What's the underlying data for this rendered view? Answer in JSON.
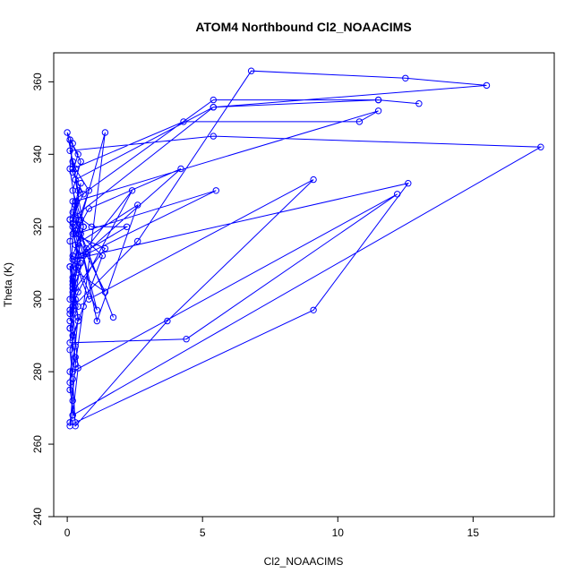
{
  "chart_data": {
    "type": "line",
    "title": "ATOM4 Northbound Cl2_NOAACIMS",
    "xlabel": "Cl2_NOAACIMS",
    "ylabel": "Theta (K)",
    "xlim": [
      -0.5,
      18.0
    ],
    "ylim": [
      240,
      368
    ],
    "x_ticks": [
      0,
      5,
      10,
      15
    ],
    "y_ticks": [
      240,
      260,
      280,
      300,
      320,
      340,
      360
    ],
    "grid": false,
    "legend": "none",
    "color": "#0000ff",
    "points": [
      [
        0.1,
        266
      ],
      [
        0.2,
        272
      ],
      [
        0.1,
        280
      ],
      [
        0.3,
        287
      ],
      [
        0.1,
        296
      ],
      [
        0.2,
        305
      ],
      [
        0.1,
        316
      ],
      [
        0.3,
        326
      ],
      [
        0.1,
        336
      ],
      [
        0.2,
        343
      ],
      [
        0.0,
        346
      ],
      [
        0.2,
        338
      ],
      [
        0.4,
        330
      ],
      [
        0.2,
        321
      ],
      [
        0.5,
        312
      ],
      [
        0.2,
        303
      ],
      [
        0.4,
        298
      ],
      [
        0.1,
        292
      ],
      [
        0.3,
        284
      ],
      [
        0.1,
        277
      ],
      [
        0.2,
        268
      ],
      [
        0.1,
        265
      ],
      [
        0.3,
        282
      ],
      [
        0.6,
        298
      ],
      [
        1.4,
        346
      ],
      [
        0.5,
        322
      ],
      [
        0.2,
        306
      ],
      [
        0.4,
        294
      ],
      [
        0.1,
        286
      ],
      [
        0.2,
        278
      ],
      [
        0.3,
        265
      ],
      [
        3.7,
        294
      ],
      [
        9.1,
        333
      ],
      [
        0.8,
        300
      ],
      [
        0.2,
        312
      ],
      [
        0.6,
        320
      ],
      [
        0.2,
        330
      ],
      [
        0.5,
        338
      ],
      [
        0.1,
        344
      ],
      [
        0.2,
        336
      ],
      [
        4.3,
        349
      ],
      [
        10.8,
        349
      ],
      [
        11.5,
        352
      ],
      [
        0.3,
        327
      ],
      [
        0.5,
        318
      ],
      [
        0.2,
        300
      ],
      [
        0.4,
        312
      ],
      [
        0.1,
        322
      ],
      [
        0.2,
        327
      ],
      [
        5.4,
        355
      ],
      [
        11.5,
        355
      ],
      [
        13.0,
        354
      ],
      [
        11.5,
        355
      ],
      [
        5.4,
        353
      ],
      [
        0.3,
        333
      ],
      [
        0.6,
        320
      ],
      [
        0.2,
        304
      ],
      [
        0.1,
        297
      ],
      [
        2.6,
        316
      ],
      [
        6.8,
        363
      ],
      [
        12.5,
        361
      ],
      [
        15.5,
        359
      ],
      [
        5.4,
        353
      ],
      [
        0.3,
        323
      ],
      [
        0.7,
        313
      ],
      [
        0.2,
        302
      ],
      [
        0.1,
        309
      ],
      [
        4.2,
        336
      ],
      [
        0.8,
        325
      ],
      [
        0.3,
        318
      ],
      [
        5.5,
        330
      ],
      [
        0.6,
        312
      ],
      [
        1.1,
        297
      ],
      [
        0.4,
        309
      ],
      [
        0.2,
        321
      ],
      [
        0.3,
        315
      ],
      [
        2.6,
        326
      ],
      [
        1.1,
        294
      ],
      [
        0.3,
        322
      ],
      [
        1.7,
        295
      ],
      [
        0.7,
        314
      ],
      [
        2.4,
        330
      ],
      [
        0.4,
        302
      ],
      [
        0.2,
        298
      ],
      [
        0.1,
        288
      ],
      [
        4.4,
        289
      ],
      [
        12.2,
        329
      ],
      [
        0.2,
        280
      ],
      [
        0.4,
        295
      ],
      [
        0.1,
        309
      ],
      [
        1.4,
        302
      ],
      [
        0.2,
        320
      ],
      [
        0.5,
        332
      ],
      [
        0.2,
        324
      ],
      [
        0.9,
        320
      ],
      [
        2.2,
        320
      ],
      [
        0.4,
        312
      ],
      [
        0.1,
        300
      ],
      [
        0.2,
        318
      ],
      [
        1.4,
        314
      ],
      [
        0.3,
        303
      ],
      [
        0.1,
        294
      ],
      [
        0.3,
        306
      ],
      [
        0.1,
        275
      ],
      [
        0.3,
        266
      ],
      [
        9.1,
        297
      ],
      [
        12.6,
        332
      ],
      [
        0.2,
        311
      ],
      [
        0.3,
        300
      ],
      [
        0.1,
        292
      ],
      [
        0.2,
        290
      ],
      [
        1.3,
        312
      ],
      [
        0.3,
        319
      ],
      [
        0.8,
        330
      ],
      [
        0.3,
        336
      ],
      [
        0.1,
        341
      ],
      [
        5.4,
        345
      ],
      [
        17.5,
        342
      ],
      [
        0.2,
        268
      ],
      [
        0.4,
        281
      ],
      [
        0.2,
        297
      ],
      [
        0.5,
        310
      ],
      [
        0.1,
        322
      ],
      [
        0.6,
        329
      ],
      [
        0.2,
        335
      ],
      [
        0.4,
        340
      ],
      [
        0.1,
        344
      ]
    ]
  }
}
